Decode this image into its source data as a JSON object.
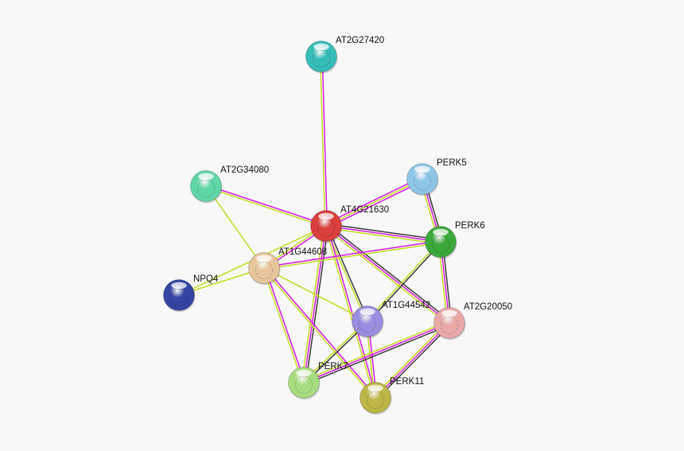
{
  "evidence_colors": {
    "magenta": "#d817e0",
    "yellow": "#c3dc1e",
    "black": "#3a3a3a"
  },
  "nodes": [
    {
      "id": "AT2G27420",
      "label": "AT2G27420",
      "color": "#36bdb8"
    },
    {
      "id": "AT2G34080",
      "label": "AT2G34080",
      "color": "#5fd6a6"
    },
    {
      "id": "PERK5",
      "label": "PERK5",
      "color": "#8ec6e8"
    },
    {
      "id": "AT4G21630",
      "label": "AT4G21630",
      "color": "#d9403e"
    },
    {
      "id": "PERK6",
      "label": "PERK6",
      "color": "#3aa83a"
    },
    {
      "id": "AT1G44608",
      "label": "AT1G44608",
      "color": "#e8c69c"
    },
    {
      "id": "NPQ4",
      "label": "NPQ4",
      "color": "#3544a0"
    },
    {
      "id": "AT1G44542",
      "label": "AT1G44542",
      "color": "#9a8ee0"
    },
    {
      "id": "AT2G20050",
      "label": "AT2G20050",
      "color": "#eaa8a8"
    },
    {
      "id": "PERK7",
      "label": "PERK7",
      "color": "#a8dc80"
    },
    {
      "id": "PERK11",
      "label": "PERK11",
      "color": "#bcb646"
    }
  ],
  "edges": [
    {
      "source": "AT2G27420",
      "target": "AT4G21630",
      "evidence": [
        "magenta",
        "yellow"
      ]
    },
    {
      "source": "AT2G34080",
      "target": "AT4G21630",
      "evidence": [
        "magenta",
        "yellow"
      ]
    },
    {
      "source": "AT2G34080",
      "target": "AT1G44608",
      "evidence": [
        "yellow"
      ]
    },
    {
      "source": "PERK5",
      "target": "AT4G21630",
      "evidence": [
        "magenta",
        "yellow",
        "magenta"
      ]
    },
    {
      "source": "PERK5",
      "target": "PERK6",
      "evidence": [
        "black",
        "magenta",
        "yellow"
      ]
    },
    {
      "source": "AT4G21630",
      "target": "PERK6",
      "evidence": [
        "black",
        "magenta",
        "yellow"
      ]
    },
    {
      "source": "AT4G21630",
      "target": "AT1G44608",
      "evidence": [
        "magenta",
        "yellow"
      ]
    },
    {
      "source": "NPQ4",
      "target": "AT1G44608",
      "evidence": [
        "yellow"
      ]
    },
    {
      "source": "NPQ4",
      "target": "AT4G21630",
      "evidence": [
        "yellow"
      ]
    },
    {
      "source": "AT4G21630",
      "target": "AT1G44542",
      "evidence": [
        "black",
        "yellow"
      ]
    },
    {
      "source": "AT4G21630",
      "target": "AT2G20050",
      "evidence": [
        "black",
        "magenta",
        "yellow"
      ]
    },
    {
      "source": "AT4G21630",
      "target": "PERK7",
      "evidence": [
        "black",
        "magenta",
        "yellow"
      ]
    },
    {
      "source": "AT4G21630",
      "target": "PERK11",
      "evidence": [
        "magenta",
        "yellow"
      ]
    },
    {
      "source": "AT1G44608",
      "target": "PERK6",
      "evidence": [
        "magenta",
        "yellow"
      ]
    },
    {
      "source": "AT1G44608",
      "target": "AT1G44542",
      "evidence": [
        "yellow"
      ]
    },
    {
      "source": "AT1G44608",
      "target": "PERK7",
      "evidence": [
        "magenta",
        "yellow"
      ]
    },
    {
      "source": "AT1G44608",
      "target": "PERK11",
      "evidence": [
        "magenta",
        "yellow"
      ]
    },
    {
      "source": "PERK6",
      "target": "AT2G20050",
      "evidence": [
        "black",
        "magenta",
        "yellow"
      ]
    },
    {
      "source": "PERK6",
      "target": "AT1G44542",
      "evidence": [
        "black",
        "yellow"
      ]
    },
    {
      "source": "AT1G44542",
      "target": "PERK7",
      "evidence": [
        "black",
        "yellow"
      ]
    },
    {
      "source": "AT1G44542",
      "target": "PERK11",
      "evidence": [
        "magenta",
        "yellow"
      ]
    },
    {
      "source": "AT2G20050",
      "target": "PERK7",
      "evidence": [
        "black",
        "magenta",
        "yellow"
      ]
    },
    {
      "source": "AT2G20050",
      "target": "PERK11",
      "evidence": [
        "black",
        "magenta",
        "yellow"
      ]
    }
  ]
}
